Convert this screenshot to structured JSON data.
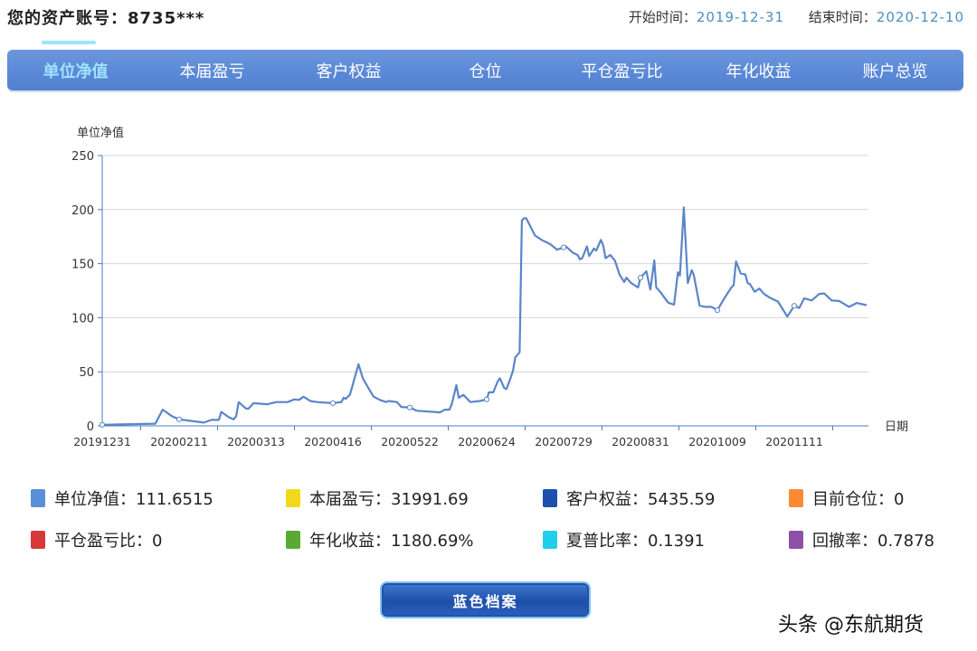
{
  "header": {
    "account_label": "您的资产账号：8735***",
    "start_label": "开始时间：",
    "start_value": "2019-12-31",
    "end_label": "结束时间：",
    "end_value": "2020-12-10"
  },
  "nav": {
    "tabs": [
      {
        "label": "单位净值",
        "active": true
      },
      {
        "label": "本届盈亏"
      },
      {
        "label": "客户权益"
      },
      {
        "label": "仓位"
      },
      {
        "label": "平仓盈亏比"
      },
      {
        "label": "年化收益"
      },
      {
        "label": "账户总览"
      }
    ]
  },
  "chart_data": {
    "type": "line",
    "ylabel": "单位净值",
    "xlabel": "日期",
    "ylim": [
      0,
      250
    ],
    "yticks": [
      0,
      50,
      100,
      150,
      200,
      250
    ],
    "xtick_labels": [
      "20191231",
      "20200211",
      "20200313",
      "20200416",
      "20200522",
      "20200624",
      "20200729",
      "20200831",
      "20201009",
      "20201111"
    ],
    "x_end": "20201210",
    "grid": "horizontal",
    "color": "#5b85c8",
    "points": [
      [
        "20191231",
        1
      ],
      [
        "20200129",
        2
      ],
      [
        "20200202",
        15
      ],
      [
        "20200207",
        9
      ],
      [
        "20200211",
        6
      ],
      [
        "20200221",
        3
      ],
      [
        "20200224",
        5.5
      ],
      [
        "20200227",
        5.5
      ],
      [
        "20200228",
        13
      ],
      [
        "20200302",
        8
      ],
      [
        "20200304",
        6
      ],
      [
        "20200305",
        9
      ],
      [
        "20200306",
        22
      ],
      [
        "20200309",
        16
      ],
      [
        "20200310",
        16
      ],
      [
        "20200312",
        21
      ],
      [
        "20200318",
        20
      ],
      [
        "20200322",
        22
      ],
      [
        "20200327",
        22
      ],
      [
        "20200330",
        24.5
      ],
      [
        "20200401",
        24
      ],
      [
        "20200403",
        27
      ],
      [
        "20200406",
        23
      ],
      [
        "20200409",
        22
      ],
      [
        "20200416",
        21
      ],
      [
        "20200420",
        22
      ],
      [
        "20200421",
        26
      ],
      [
        "20200422",
        25
      ],
      [
        "20200424",
        29
      ],
      [
        "20200428",
        57
      ],
      [
        "20200430",
        44
      ],
      [
        "20200502",
        37
      ],
      [
        "20200505",
        27
      ],
      [
        "20200508",
        24
      ],
      [
        "20200511",
        22
      ],
      [
        "20200512",
        23
      ],
      [
        "20200516",
        22
      ],
      [
        "20200518",
        17.5
      ],
      [
        "20200522",
        17
      ],
      [
        "20200525",
        14
      ],
      [
        "20200601",
        13
      ],
      [
        "20200604",
        12.5
      ],
      [
        "20200606",
        15
      ],
      [
        "20200608",
        15
      ],
      [
        "20200609",
        20
      ],
      [
        "20200611",
        37.6
      ],
      [
        "20200612",
        26
      ],
      [
        "20200614",
        28.7
      ],
      [
        "20200617",
        22
      ],
      [
        "20200621",
        23
      ],
      [
        "20200624",
        24.5
      ],
      [
        "20200625",
        31
      ],
      [
        "20200627",
        31
      ],
      [
        "20200629",
        41
      ],
      [
        "20200630",
        44
      ],
      [
        "20200702",
        35
      ],
      [
        "20200703",
        34
      ],
      [
        "20200705",
        45
      ],
      [
        "20200706",
        51
      ],
      [
        "20200707",
        63.5
      ],
      [
        "20200709",
        68
      ],
      [
        "20200710",
        190
      ],
      [
        "20200711",
        192
      ],
      [
        "20200712",
        192
      ],
      [
        "20200716",
        176
      ],
      [
        "20200719",
        172
      ],
      [
        "20200723",
        168
      ],
      [
        "20200726",
        163
      ],
      [
        "20200729",
        165
      ],
      [
        "20200730",
        166
      ],
      [
        "20200802",
        160
      ],
      [
        "20200804",
        158
      ],
      [
        "20200805",
        154
      ],
      [
        "20200806",
        155
      ],
      [
        "20200808",
        166
      ],
      [
        "20200809",
        157
      ],
      [
        "20200811",
        164
      ],
      [
        "20200812",
        162
      ],
      [
        "20200814",
        172
      ],
      [
        "20200815",
        167
      ],
      [
        "20200816",
        155
      ],
      [
        "20200818",
        158
      ],
      [
        "20200820",
        153
      ],
      [
        "20200822",
        140
      ],
      [
        "20200824",
        133
      ],
      [
        "20200825",
        137
      ],
      [
        "20200827",
        132
      ],
      [
        "20200830",
        128
      ],
      [
        "20200831",
        137
      ],
      [
        "20200903",
        143
      ],
      [
        "20200905",
        126
      ],
      [
        "20200907",
        153
      ],
      [
        "20200908",
        128
      ],
      [
        "20200910",
        124
      ],
      [
        "20200914",
        114
      ],
      [
        "20200917",
        112
      ],
      [
        "20200919",
        142
      ],
      [
        "20200920",
        139
      ],
      [
        "20200922",
        202
      ],
      [
        "20200924",
        132
      ],
      [
        "20200926",
        144
      ],
      [
        "20200927",
        140
      ],
      [
        "20200930",
        111
      ],
      [
        "20201003",
        110
      ],
      [
        "20201006",
        110
      ],
      [
        "20201009",
        107
      ],
      [
        "20201012",
        118
      ],
      [
        "20201015",
        128
      ],
      [
        "20201016",
        130
      ],
      [
        "20201017",
        152
      ],
      [
        "20201019",
        141
      ],
      [
        "20201021",
        140
      ],
      [
        "20201022",
        132
      ],
      [
        "20201023",
        131
      ],
      [
        "20201025",
        124
      ],
      [
        "20201027",
        127
      ],
      [
        "20201029",
        122
      ],
      [
        "20201101",
        118
      ],
      [
        "20201104",
        115
      ],
      [
        "20201108",
        101
      ],
      [
        "20201111",
        111
      ],
      [
        "20201113",
        109
      ],
      [
        "20201115",
        118
      ],
      [
        "20201118",
        116
      ],
      [
        "20201121",
        122
      ],
      [
        "20201123",
        122.5
      ],
      [
        "20201126",
        116
      ],
      [
        "20201129",
        115.5
      ],
      [
        "20201203",
        110
      ],
      [
        "20201206",
        113.6
      ],
      [
        "20201210",
        111.6515
      ]
    ]
  },
  "legend": [
    {
      "label": "单位净值：111.6515",
      "color": "#5b8ed8"
    },
    {
      "label": "本届盈亏：31991.69",
      "color": "#f2d81c"
    },
    {
      "label": "客户权益：5435.59",
      "color": "#1f4fae"
    },
    {
      "label": "目前仓位：0",
      "color": "#fd8a32"
    },
    {
      "label": "平仓盈亏比：0",
      "color": "#d9383a"
    },
    {
      "label": "年化收益：1180.69%",
      "color": "#5aaa32"
    },
    {
      "label": "夏普比率：0.1391",
      "color": "#21cfea"
    },
    {
      "label": "回撤率：0.7878",
      "color": "#8c51a6"
    }
  ],
  "button": {
    "label": "蓝色档案"
  },
  "watermark": "头条 @东航期货"
}
